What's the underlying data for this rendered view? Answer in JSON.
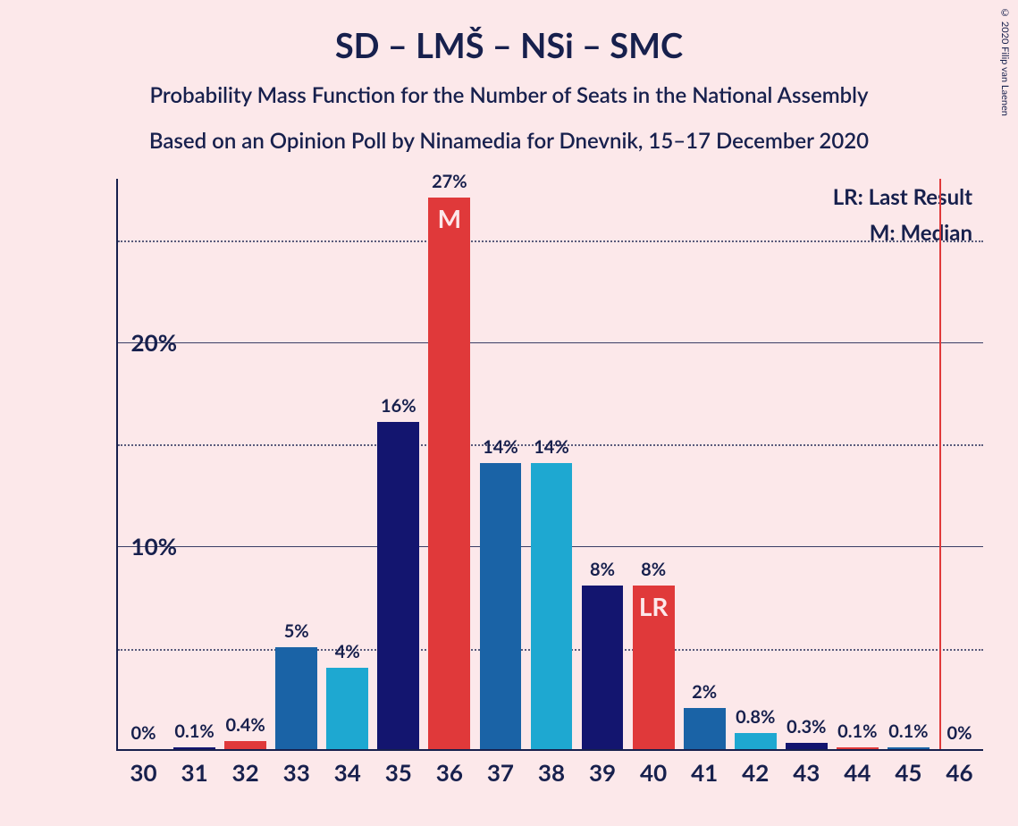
{
  "title": "SD – LMŠ – NSi – SMC",
  "subtitle1": "Probability Mass Function for the Number of Seats in the National Assembly",
  "subtitle2": "Based on an Opinion Poll by Ninamedia for Dnevnik, 15–17 December 2020",
  "copyright": "© 2020 Filip van Laenen",
  "legend": {
    "lr": "LR: Last Result",
    "m": "M: Median"
  },
  "chart": {
    "type": "bar",
    "background_color": "#fce8ea",
    "text_color": "#17204d",
    "colors": {
      "darkblue": "#13156f",
      "medblue": "#1a63a6",
      "cyan": "#1ea8d1",
      "red": "#e0393a"
    },
    "title_fontsize": 38,
    "subtitle_fontsize": 24,
    "axis_fontsize": 26,
    "barlabel_fontsize": 20,
    "inlabel_fontsize": 28,
    "legend_fontsize": 24,
    "ylim": [
      0,
      28
    ],
    "ymajor": [
      10,
      20
    ],
    "yminor": [
      5,
      15,
      25
    ],
    "yticklabels": [
      "10%",
      "20%"
    ],
    "x_categories": [
      30,
      31,
      32,
      33,
      34,
      35,
      36,
      37,
      38,
      39,
      40,
      41,
      42,
      43,
      44,
      45,
      46
    ],
    "bar_width": 0.82,
    "lr_line_at": 45.6,
    "bars": [
      {
        "x": 30,
        "value": 0,
        "label": "0%",
        "color": "cyan"
      },
      {
        "x": 31,
        "value": 0.1,
        "label": "0.1%",
        "color": "darkblue"
      },
      {
        "x": 32,
        "value": 0.4,
        "label": "0.4%",
        "color": "red"
      },
      {
        "x": 33,
        "value": 5,
        "label": "5%",
        "color": "medblue"
      },
      {
        "x": 34,
        "value": 4,
        "label": "4%",
        "color": "cyan"
      },
      {
        "x": 35,
        "value": 16,
        "label": "16%",
        "color": "darkblue"
      },
      {
        "x": 36,
        "value": 27,
        "label": "27%",
        "color": "red",
        "inlabel": "M"
      },
      {
        "x": 37,
        "value": 14,
        "label": "14%",
        "color": "medblue"
      },
      {
        "x": 38,
        "value": 14,
        "label": "14%",
        "color": "cyan"
      },
      {
        "x": 39,
        "value": 8,
        "label": "8%",
        "color": "darkblue"
      },
      {
        "x": 40,
        "value": 8,
        "label": "8%",
        "color": "red",
        "inlabel": "LR"
      },
      {
        "x": 41,
        "value": 2,
        "label": "2%",
        "color": "medblue"
      },
      {
        "x": 42,
        "value": 0.8,
        "label": "0.8%",
        "color": "cyan"
      },
      {
        "x": 43,
        "value": 0.3,
        "label": "0.3%",
        "color": "darkblue"
      },
      {
        "x": 44,
        "value": 0.1,
        "label": "0.1%",
        "color": "red"
      },
      {
        "x": 45,
        "value": 0.1,
        "label": "0.1%",
        "color": "medblue"
      },
      {
        "x": 46,
        "value": 0,
        "label": "0%",
        "color": "cyan"
      }
    ]
  }
}
